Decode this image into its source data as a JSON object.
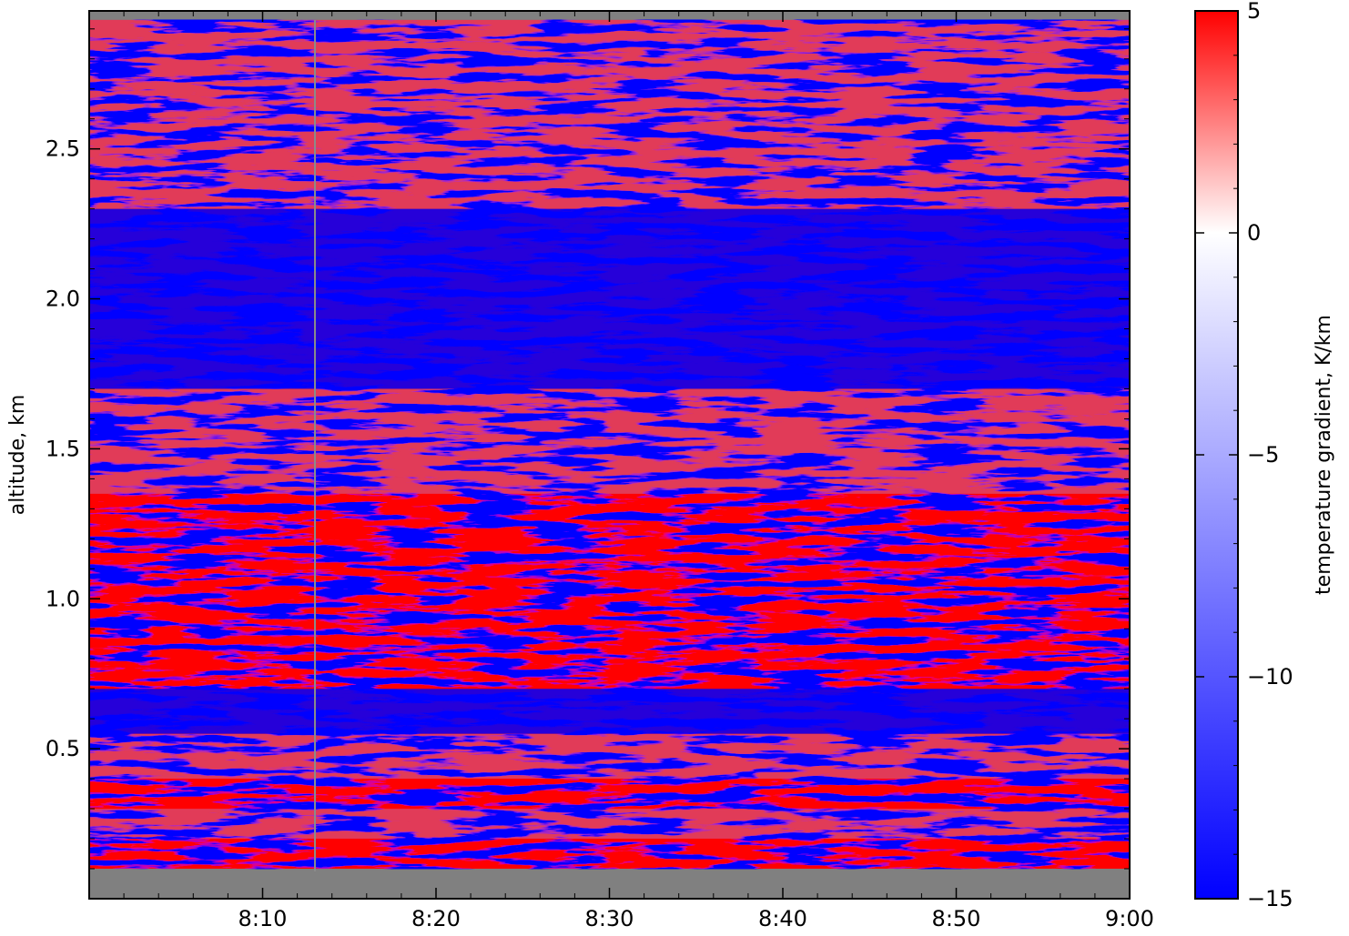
{
  "chart_data": {
    "type": "heatmap",
    "title": "",
    "xlabel": "",
    "ylabel": "altitude, km",
    "x_range": [
      "8:00",
      "9:00"
    ],
    "y_range": [
      0.0,
      2.96
    ],
    "x_ticks": [
      "8:10",
      "8:20",
      "8:30",
      "8:40",
      "8:50",
      "9:00"
    ],
    "y_ticks": [
      "0.5",
      "1.0",
      "1.5",
      "2.0",
      "2.5"
    ],
    "y_tick_values": [
      0.5,
      1.0,
      1.5,
      2.0,
      2.5
    ],
    "data_altitude_range_km": [
      0.1,
      2.93
    ],
    "missing_color": "#808080",
    "colorbar": {
      "label": "temperature gradient, K/km",
      "min": -15,
      "max": 5,
      "ticks": [
        "5",
        "0",
        "−5",
        "−10",
        "−15"
      ],
      "tick_values": [
        5,
        0,
        -5,
        -10,
        -15
      ],
      "colormap": [
        "#0000ff",
        "#ffffff",
        "#ff0000"
      ],
      "center_value": 0
    },
    "layers": [
      {
        "alt_from": 0.1,
        "alt_to": 0.2,
        "dominant": "positive",
        "value": 5
      },
      {
        "alt_from": 0.2,
        "alt_to": 0.3,
        "dominant": "mixed",
        "value": -5
      },
      {
        "alt_from": 0.3,
        "alt_to": 0.4,
        "dominant": "positive",
        "value": 5
      },
      {
        "alt_from": 0.4,
        "alt_to": 0.55,
        "dominant": "mixed",
        "value": -5
      },
      {
        "alt_from": 0.55,
        "alt_to": 0.7,
        "dominant": "negative",
        "value": -15
      },
      {
        "alt_from": 0.7,
        "alt_to": 1.05,
        "dominant": "positive",
        "value": 5
      },
      {
        "alt_from": 1.05,
        "alt_to": 1.35,
        "dominant": "positive",
        "value": 5
      },
      {
        "alt_from": 1.35,
        "alt_to": 1.7,
        "dominant": "mixed",
        "value": -5
      },
      {
        "alt_from": 1.7,
        "alt_to": 2.3,
        "dominant": "negative",
        "value": -15
      },
      {
        "alt_from": 2.3,
        "alt_to": 2.93,
        "dominant": "mixed",
        "value": -5
      }
    ]
  }
}
